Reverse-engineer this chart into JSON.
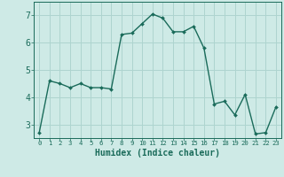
{
  "x": [
    0,
    1,
    2,
    3,
    4,
    5,
    6,
    7,
    8,
    9,
    10,
    11,
    12,
    13,
    14,
    15,
    16,
    17,
    18,
    19,
    20,
    21,
    22,
    23
  ],
  "y": [
    2.7,
    4.6,
    4.5,
    4.35,
    4.5,
    4.35,
    4.35,
    4.3,
    6.3,
    6.35,
    6.7,
    7.05,
    6.9,
    6.4,
    6.4,
    6.6,
    5.8,
    3.75,
    3.85,
    3.35,
    4.1,
    2.65,
    2.7,
    3.65
  ],
  "xlabel": "Humidex (Indice chaleur)",
  "ylim": [
    2.5,
    7.5
  ],
  "xlim": [
    -0.5,
    23.5
  ],
  "line_color": "#1a6b5a",
  "marker_color": "#1a6b5a",
  "bg_color": "#ceeae6",
  "grid_color": "#aed4cf",
  "yticks": [
    3,
    4,
    5,
    6,
    7
  ],
  "xtick_labels": [
    "0",
    "1",
    "2",
    "3",
    "4",
    "5",
    "6",
    "7",
    "8",
    "9",
    "10",
    "11",
    "12",
    "13",
    "14",
    "15",
    "16",
    "17",
    "18",
    "19",
    "20",
    "21",
    "22",
    "23"
  ],
  "xlabel_fontsize": 7,
  "xlabel_color": "#1a6b5a",
  "tick_color": "#1a6b5a",
  "spine_color": "#1a6b5a"
}
